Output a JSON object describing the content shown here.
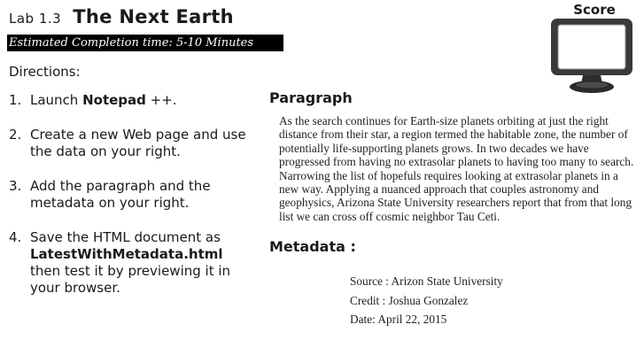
{
  "header": {
    "lab_label": "Lab 1.3",
    "title": "The Next Earth",
    "completion_time": "Estimated Completion time: 5-10 Minutes"
  },
  "score": {
    "label": "Score"
  },
  "directions": {
    "heading": "Directions:",
    "steps": [
      {
        "number": "1.",
        "before": "Launch ",
        "bold": "Notepad",
        "after": " ++."
      },
      {
        "number": "2.",
        "text": "Create a new Web page and use the data on your right."
      },
      {
        "number": "3.",
        "text": "Add the paragraph and the metadata on your right."
      },
      {
        "number": "4.",
        "before": "Save the HTML document as ",
        "bold": "LatestWithMetadata.html",
        "after": " then test it by previewing it in your browser."
      }
    ]
  },
  "paragraph": {
    "heading": "Paragraph",
    "text": "As the search continues for Earth-size planets orbiting at just the right distance from their star, a region termed the habitable zone, the number of potentially life-supporting planets grows. In two decades we have progressed from having no extrasolar planets to having too many to search. Narrowing the list of hopefuls requires looking at extrasolar planets in a new way. Applying a nuanced approach that couples astronomy and geophysics, Arizona State University researchers report that from that long list we can cross off cosmic neighbor Tau Ceti."
  },
  "metadata": {
    "heading": "Metadata :",
    "source": "Source : Arizon State University",
    "credit": "Credit : Joshua Gonzalez",
    "date": "Date: April 22, 2015"
  }
}
